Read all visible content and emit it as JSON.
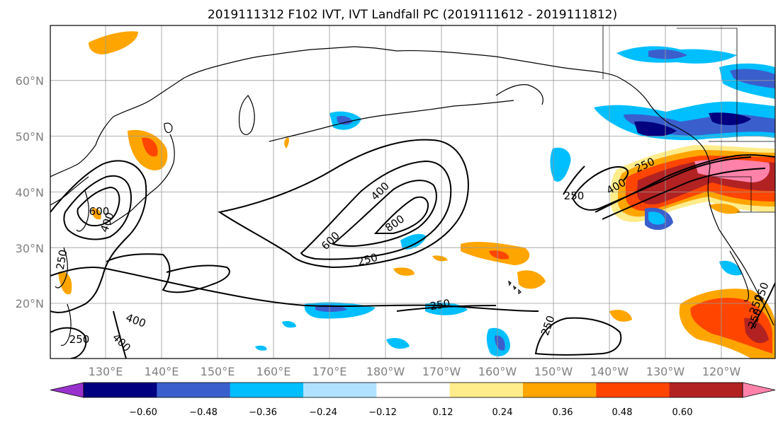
{
  "title": "2019111312 F102 IVT, IVT Landfall PC (2019111612 - 2019111812)",
  "map": {
    "projection": "PlateCarree",
    "lat_labels": [
      "20°N",
      "30°N",
      "40°N",
      "50°N",
      "60°N"
    ],
    "lon_labels": [
      "130°E",
      "140°E",
      "150°E",
      "160°E",
      "170°E",
      "180°W",
      "170°W",
      "160°W",
      "150°W",
      "140°W",
      "130°W",
      "120°W"
    ],
    "grid": true
  },
  "ivt_contours": {
    "levels": [
      "250",
      "400",
      "600",
      "800"
    ],
    "labels": [
      "600",
      "400",
      "250",
      "250",
      "400",
      "400",
      "600",
      "800",
      "250",
      "250",
      "250",
      "400",
      "250",
      "250",
      "250",
      "250",
      "250",
      "400"
    ]
  },
  "colorbar": {
    "ticks": [
      "−0.60",
      "−0.48",
      "−0.36",
      "−0.24",
      "−0.12",
      "0.12",
      "0.24",
      "0.36",
      "0.48",
      "0.60"
    ],
    "colors": [
      "#9932cc",
      "#000080",
      "#3a5fcd",
      "#00bfff",
      "#b0e2ff",
      "#ffffff",
      "#ffec8b",
      "#ffa500",
      "#ff4500",
      "#b22222",
      "#ff82ab"
    ]
  },
  "palette": {
    "dark_blue": "#000080",
    "blue": "#3a5fcd",
    "sky": "#00bfff",
    "light_sky": "#b0e2ff",
    "light_yellow": "#ffec8b",
    "orange": "#ffa500",
    "red_orange": "#ff4500",
    "dark_red": "#b22222",
    "pink": "#ff82ab"
  }
}
